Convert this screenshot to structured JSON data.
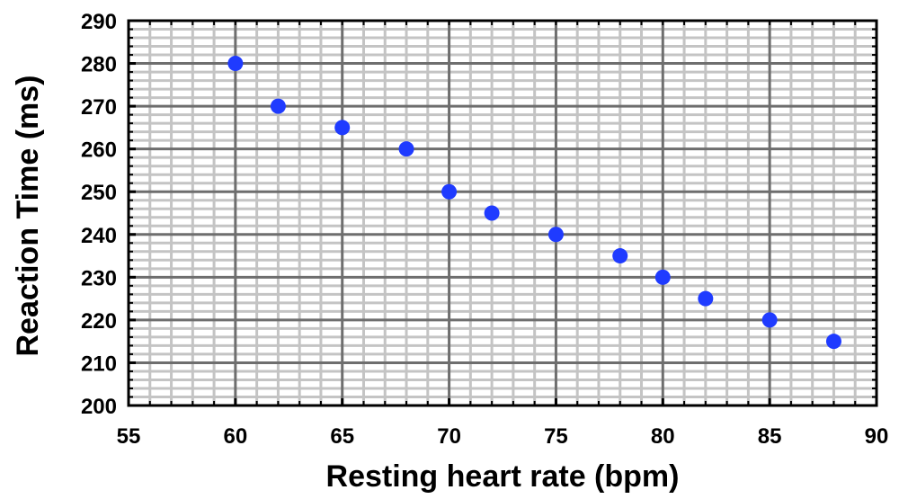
{
  "chart_data": {
    "type": "scatter",
    "title": "",
    "xlabel": "Resting heart rate (bpm)",
    "ylabel": "Reaction Time (ms)",
    "xlim": [
      55,
      90
    ],
    "ylim": [
      200,
      290
    ],
    "x_ticks": [
      "55",
      "60",
      "65",
      "70",
      "75",
      "80",
      "85",
      "90"
    ],
    "y_ticks": [
      "200",
      "210",
      "220",
      "230",
      "240",
      "250",
      "260",
      "270",
      "280",
      "290"
    ],
    "grid": true,
    "legend": "none",
    "marker_color": "#1f3bff",
    "series": [
      {
        "x": [
          60,
          62,
          65,
          68,
          70,
          72,
          75,
          78,
          80,
          82,
          85,
          88
        ],
        "y": [
          280,
          270,
          265,
          260,
          250,
          245,
          240,
          235,
          230,
          225,
          220,
          215
        ]
      }
    ]
  }
}
